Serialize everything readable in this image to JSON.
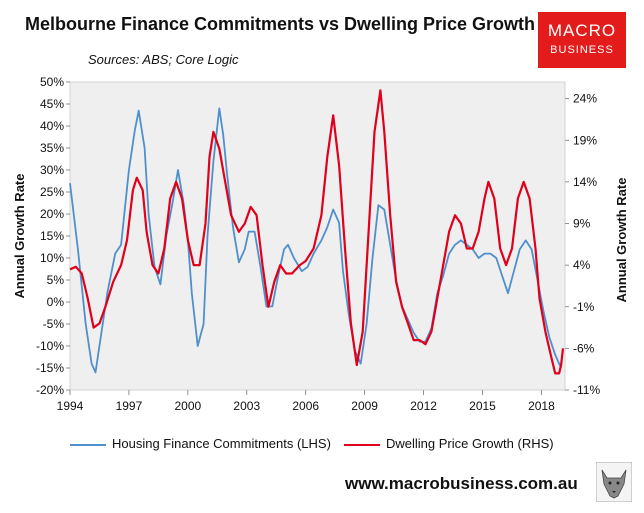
{
  "header": {
    "title": "Melbourne Finance Commitments vs Dwelling Price Growth",
    "subtitle": "Sources: ABS; Core Logic"
  },
  "logo": {
    "line1": "MACRO",
    "line2": "BUSINESS",
    "color": "#e31b1b"
  },
  "footer": {
    "url": "www.macrobusiness.com.au"
  },
  "colors": {
    "lhs": "#4f8fcc",
    "rhs": "#e0001b",
    "plot_bg": "#efefef"
  },
  "chart_data": {
    "type": "line",
    "title": "Melbourne Finance Commitments vs Dwelling Price Growth",
    "ylabel_left": "Annual Growth Rate",
    "ylabel_right": "Annual Growth Rate",
    "ylim_left": [
      -20,
      50
    ],
    "ylim_right": [
      -11,
      26
    ],
    "yticks_left": [
      "50%",
      "45%",
      "40%",
      "35%",
      "30%",
      "25%",
      "20%",
      "15%",
      "10%",
      "5%",
      "0%",
      "-5%",
      "-10%",
      "-15%",
      "-20%"
    ],
    "yticks_right": [
      "24%",
      "19%",
      "14%",
      "9%",
      "4%",
      "-1%",
      "-6%",
      "-11%"
    ],
    "yticks_right_values": [
      24,
      19,
      14,
      9,
      4,
      -1,
      -6,
      -11
    ],
    "xlim": [
      1994,
      2019.2
    ],
    "xticks": [
      "1994",
      "1997",
      "2000",
      "2003",
      "2006",
      "2009",
      "2012",
      "2015",
      "2018"
    ],
    "grid": false,
    "legend": "bottom",
    "series": [
      {
        "name": "Housing Finance Commitments (LHS)",
        "axis": "left",
        "points": [
          [
            1994.0,
            27
          ],
          [
            1994.4,
            12
          ],
          [
            1994.8,
            -5
          ],
          [
            1995.1,
            -14
          ],
          [
            1995.3,
            -16
          ],
          [
            1995.6,
            -7
          ],
          [
            1995.9,
            2
          ],
          [
            1996.3,
            11
          ],
          [
            1996.6,
            13
          ],
          [
            1997.0,
            30
          ],
          [
            1997.3,
            39
          ],
          [
            1997.5,
            43.5
          ],
          [
            1997.8,
            35
          ],
          [
            1998.0,
            20
          ],
          [
            1998.3,
            8
          ],
          [
            1998.6,
            4
          ],
          [
            1998.9,
            15
          ],
          [
            1999.2,
            22
          ],
          [
            1999.5,
            30
          ],
          [
            1999.8,
            22
          ],
          [
            2000.0,
            14
          ],
          [
            2000.2,
            2
          ],
          [
            2000.5,
            -10
          ],
          [
            2000.8,
            -5
          ],
          [
            2001.0,
            15
          ],
          [
            2001.3,
            32
          ],
          [
            2001.6,
            44
          ],
          [
            2001.8,
            38
          ],
          [
            2002.0,
            29
          ],
          [
            2002.3,
            17
          ],
          [
            2002.6,
            9
          ],
          [
            2002.9,
            12
          ],
          [
            2003.1,
            16
          ],
          [
            2003.4,
            16
          ],
          [
            2003.7,
            8
          ],
          [
            2004.0,
            -1
          ],
          [
            2004.3,
            -1
          ],
          [
            2004.6,
            6
          ],
          [
            2004.9,
            12
          ],
          [
            2005.1,
            13
          ],
          [
            2005.4,
            10
          ],
          [
            2005.8,
            7
          ],
          [
            2006.1,
            8
          ],
          [
            2006.4,
            11
          ],
          [
            2006.8,
            14
          ],
          [
            2007.1,
            17
          ],
          [
            2007.4,
            21
          ],
          [
            2007.7,
            18
          ],
          [
            2007.9,
            7
          ],
          [
            2008.2,
            -3
          ],
          [
            2008.5,
            -11
          ],
          [
            2008.8,
            -14
          ],
          [
            2009.1,
            -5
          ],
          [
            2009.4,
            10
          ],
          [
            2009.7,
            22
          ],
          [
            2010.0,
            21
          ],
          [
            2010.3,
            13
          ],
          [
            2010.6,
            5
          ],
          [
            2010.9,
            -1
          ],
          [
            2011.2,
            -4
          ],
          [
            2011.5,
            -7
          ],
          [
            2011.8,
            -9
          ],
          [
            2012.1,
            -9
          ],
          [
            2012.4,
            -6
          ],
          [
            2012.7,
            2
          ],
          [
            2013.0,
            6
          ],
          [
            2013.3,
            11
          ],
          [
            2013.6,
            13
          ],
          [
            2013.9,
            14
          ],
          [
            2014.2,
            13
          ],
          [
            2014.5,
            12
          ],
          [
            2014.8,
            10
          ],
          [
            2015.1,
            11
          ],
          [
            2015.4,
            11
          ],
          [
            2015.7,
            10
          ],
          [
            2016.0,
            6
          ],
          [
            2016.3,
            2
          ],
          [
            2016.6,
            7
          ],
          [
            2016.9,
            12
          ],
          [
            2017.2,
            14
          ],
          [
            2017.5,
            12
          ],
          [
            2017.8,
            5
          ],
          [
            2018.1,
            -2
          ],
          [
            2018.4,
            -8
          ],
          [
            2018.7,
            -12
          ],
          [
            2018.9,
            -14
          ],
          [
            2019.0,
            -15
          ]
        ]
      },
      {
        "name": "Dwelling Price Growth (RHS)",
        "axis": "right",
        "points": [
          [
            1994.0,
            3.5
          ],
          [
            1994.3,
            3.8
          ],
          [
            1994.6,
            3
          ],
          [
            1994.9,
            0
          ],
          [
            1995.2,
            -3.5
          ],
          [
            1995.5,
            -3
          ],
          [
            1995.8,
            -1
          ],
          [
            1996.2,
            2
          ],
          [
            1996.6,
            4
          ],
          [
            1996.9,
            7
          ],
          [
            1997.2,
            13
          ],
          [
            1997.4,
            14.5
          ],
          [
            1997.7,
            13
          ],
          [
            1997.9,
            8
          ],
          [
            1998.2,
            4
          ],
          [
            1998.5,
            3
          ],
          [
            1998.8,
            6
          ],
          [
            1999.1,
            12
          ],
          [
            1999.4,
            14
          ],
          [
            1999.7,
            12
          ],
          [
            2000.0,
            7
          ],
          [
            2000.3,
            4
          ],
          [
            2000.6,
            4
          ],
          [
            2000.9,
            9
          ],
          [
            2001.1,
            17
          ],
          [
            2001.3,
            20
          ],
          [
            2001.6,
            18
          ],
          [
            2001.9,
            14
          ],
          [
            2002.2,
            10
          ],
          [
            2002.6,
            8
          ],
          [
            2002.9,
            9
          ],
          [
            2003.2,
            11
          ],
          [
            2003.5,
            10
          ],
          [
            2003.8,
            4
          ],
          [
            2004.1,
            -1
          ],
          [
            2004.4,
            2
          ],
          [
            2004.7,
            4
          ],
          [
            2005.0,
            3
          ],
          [
            2005.3,
            3
          ],
          [
            2005.7,
            4
          ],
          [
            2006.0,
            4.5
          ],
          [
            2006.4,
            6
          ],
          [
            2006.8,
            10
          ],
          [
            2007.1,
            17
          ],
          [
            2007.4,
            22
          ],
          [
            2007.7,
            16
          ],
          [
            2008.0,
            6
          ],
          [
            2008.3,
            -3
          ],
          [
            2008.6,
            -8
          ],
          [
            2008.9,
            -4
          ],
          [
            2009.2,
            8
          ],
          [
            2009.5,
            20
          ],
          [
            2009.8,
            25
          ],
          [
            2010.0,
            20
          ],
          [
            2010.3,
            10
          ],
          [
            2010.6,
            2
          ],
          [
            2010.9,
            -1
          ],
          [
            2011.2,
            -3
          ],
          [
            2011.5,
            -5
          ],
          [
            2011.8,
            -5
          ],
          [
            2012.1,
            -5.5
          ],
          [
            2012.4,
            -4
          ],
          [
            2012.7,
            0
          ],
          [
            2013.0,
            4
          ],
          [
            2013.3,
            8
          ],
          [
            2013.6,
            10
          ],
          [
            2013.9,
            9
          ],
          [
            2014.2,
            6
          ],
          [
            2014.5,
            6
          ],
          [
            2014.8,
            8
          ],
          [
            2015.1,
            12
          ],
          [
            2015.3,
            14
          ],
          [
            2015.6,
            12
          ],
          [
            2015.9,
            6
          ],
          [
            2016.2,
            4
          ],
          [
            2016.5,
            6
          ],
          [
            2016.8,
            12
          ],
          [
            2017.1,
            14
          ],
          [
            2017.4,
            12
          ],
          [
            2017.7,
            6
          ],
          [
            2017.9,
            0
          ],
          [
            2018.2,
            -4
          ],
          [
            2018.5,
            -7
          ],
          [
            2018.7,
            -9
          ],
          [
            2018.9,
            -9
          ],
          [
            2019.0,
            -8
          ],
          [
            2019.1,
            -6
          ]
        ]
      }
    ]
  }
}
